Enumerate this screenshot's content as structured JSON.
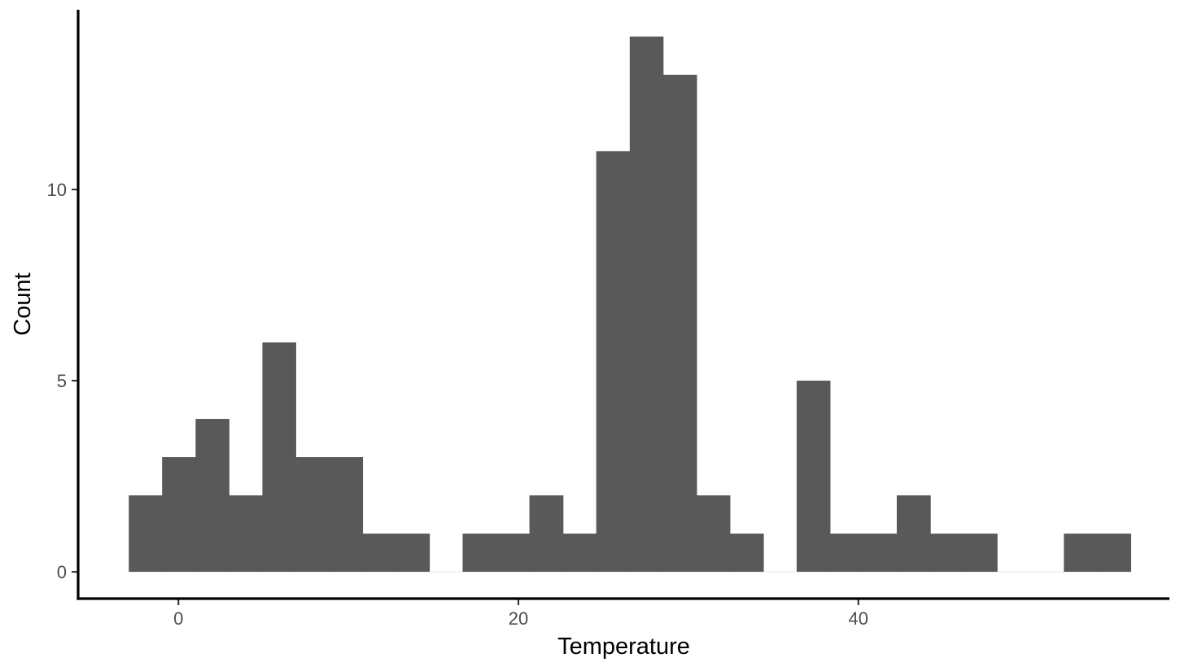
{
  "chart_data": {
    "type": "bar",
    "subtype": "histogram",
    "title": "",
    "xlabel": "Temperature",
    "ylabel": "Count",
    "x_ticks": [
      0,
      20,
      40
    ],
    "y_ticks": [
      0,
      5,
      10
    ],
    "xlim": [
      -5.9,
      58.3
    ],
    "ylim": [
      -0.7,
      14.7
    ],
    "bin_width": 1.964,
    "bins": [
      {
        "x_start": -2.92,
        "x_end": -0.96,
        "count": 2
      },
      {
        "x_start": -0.96,
        "x_end": 1.01,
        "count": 3
      },
      {
        "x_start": 1.01,
        "x_end": 2.97,
        "count": 4
      },
      {
        "x_start": 2.97,
        "x_end": 4.94,
        "count": 2
      },
      {
        "x_start": 4.94,
        "x_end": 6.9,
        "count": 6
      },
      {
        "x_start": 6.9,
        "x_end": 8.87,
        "count": 3
      },
      {
        "x_start": 8.87,
        "x_end": 10.83,
        "count": 3
      },
      {
        "x_start": 10.83,
        "x_end": 12.8,
        "count": 1
      },
      {
        "x_start": 12.8,
        "x_end": 14.76,
        "count": 1
      },
      {
        "x_start": 14.76,
        "x_end": 16.72,
        "count": 0
      },
      {
        "x_start": 16.72,
        "x_end": 18.69,
        "count": 1
      },
      {
        "x_start": 18.69,
        "x_end": 20.65,
        "count": 1
      },
      {
        "x_start": 20.65,
        "x_end": 22.62,
        "count": 2
      },
      {
        "x_start": 22.62,
        "x_end": 24.58,
        "count": 1
      },
      {
        "x_start": 24.58,
        "x_end": 26.55,
        "count": 11
      },
      {
        "x_start": 26.55,
        "x_end": 28.51,
        "count": 14
      },
      {
        "x_start": 28.51,
        "x_end": 30.48,
        "count": 13
      },
      {
        "x_start": 30.48,
        "x_end": 32.44,
        "count": 2
      },
      {
        "x_start": 32.44,
        "x_end": 34.41,
        "count": 1
      },
      {
        "x_start": 34.41,
        "x_end": 36.37,
        "count": 0
      },
      {
        "x_start": 36.37,
        "x_end": 38.33,
        "count": 5
      },
      {
        "x_start": 38.33,
        "x_end": 40.3,
        "count": 1
      },
      {
        "x_start": 40.3,
        "x_end": 42.26,
        "count": 1
      },
      {
        "x_start": 42.26,
        "x_end": 44.23,
        "count": 2
      },
      {
        "x_start": 44.23,
        "x_end": 46.19,
        "count": 1
      },
      {
        "x_start": 46.19,
        "x_end": 48.16,
        "count": 1
      },
      {
        "x_start": 48.16,
        "x_end": 50.12,
        "count": 0
      },
      {
        "x_start": 50.12,
        "x_end": 52.09,
        "count": 0
      },
      {
        "x_start": 52.09,
        "x_end": 54.05,
        "count": 1
      },
      {
        "x_start": 54.05,
        "x_end": 56.02,
        "count": 1
      }
    ],
    "grid": false,
    "legend": "none",
    "colors": {
      "bar_fill": "#595959",
      "zero_bin_line": "#e6e6e6",
      "axis": "#000000",
      "tick_label": "#4d4d4d",
      "background": "#ffffff"
    }
  }
}
